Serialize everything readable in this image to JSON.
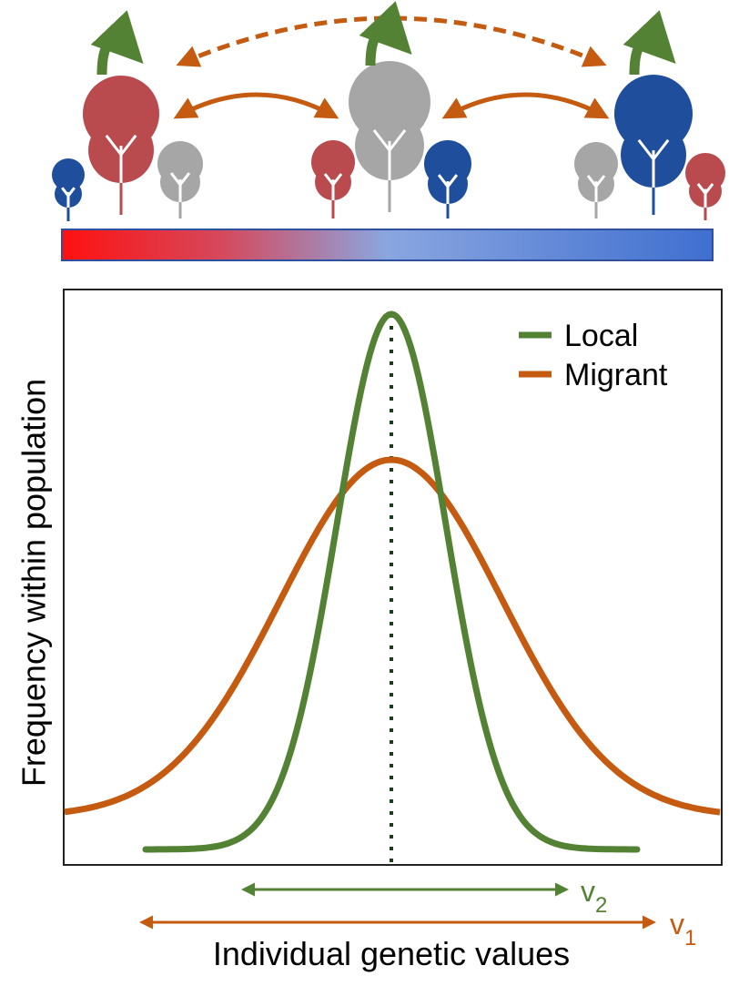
{
  "legend": {
    "items": [
      {
        "label": "Local",
        "color": "#548235"
      },
      {
        "label": "Migrant",
        "color": "#c55a11"
      }
    ]
  },
  "axes": {
    "y_label": "Frequency within population",
    "x_label": "Individual genetic values"
  },
  "ranges": [
    {
      "label": "v",
      "subscript": "2",
      "color": "#548235"
    },
    {
      "label": "v",
      "subscript": "1",
      "color": "#c55a11"
    }
  ]
}
